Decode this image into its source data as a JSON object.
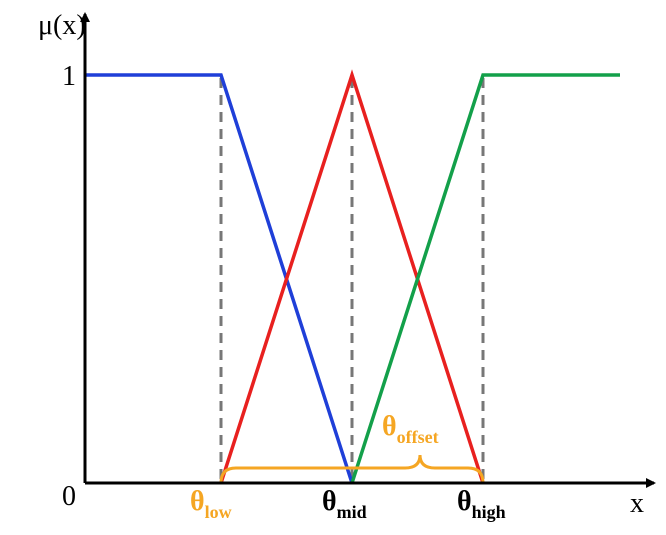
{
  "axes": {
    "y_label": "μ(x)",
    "x_label": "x",
    "y_top": "1",
    "origin": "0"
  },
  "labels": {
    "low": {
      "symbol": "θ",
      "subscript": "low"
    },
    "mid": {
      "symbol": "θ",
      "subscript": "mid"
    },
    "high": {
      "symbol": "θ",
      "subscript": "high"
    },
    "offset": {
      "symbol": "θ",
      "subscript": "offset"
    }
  }
}
